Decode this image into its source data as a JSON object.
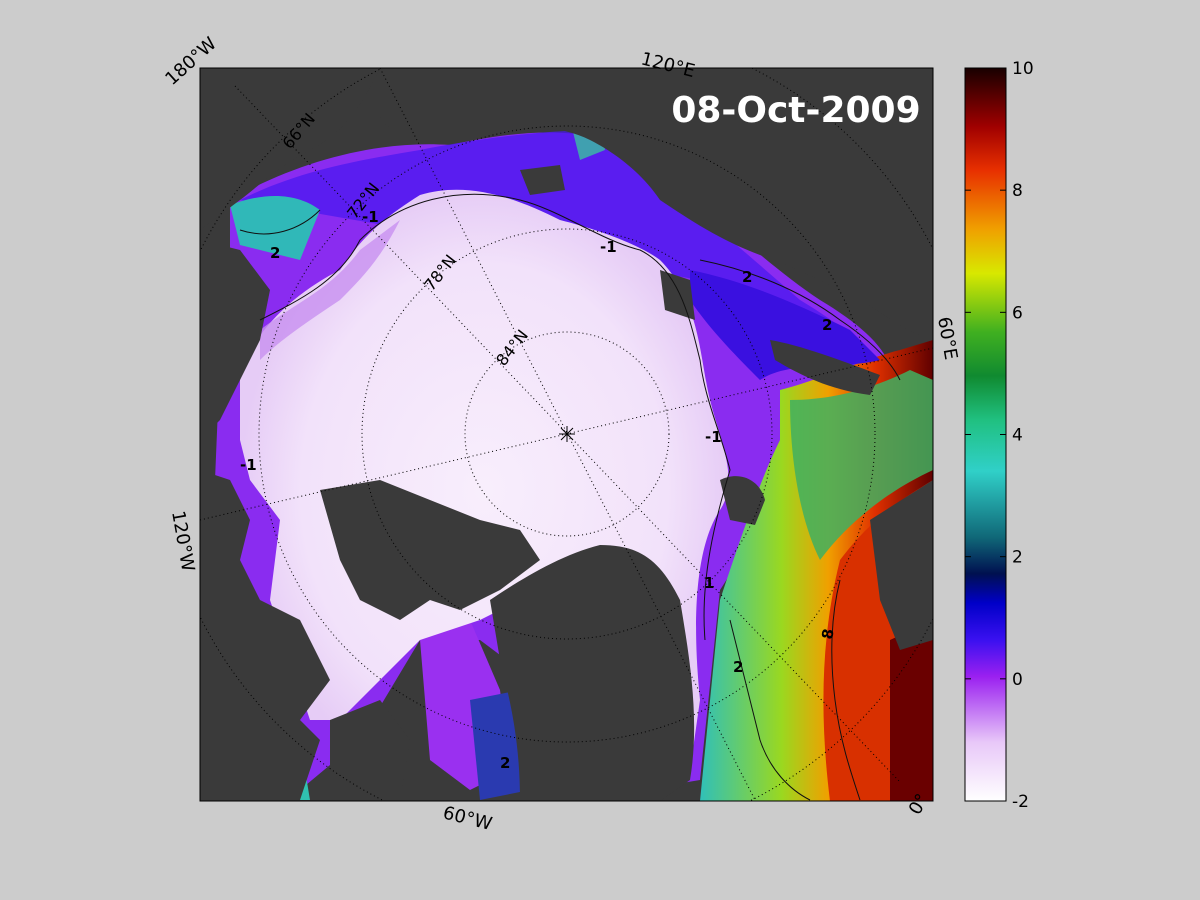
{
  "map": {
    "date_label": "08-Oct-2009",
    "longitude_labels": {
      "lon_180w": "180°W",
      "lon_120e": "120°E",
      "lon_60e": "60°E",
      "lon_0": "0°",
      "lon_60w": "60°W",
      "lon_120w": "120°W"
    },
    "latitude_labels": {
      "lat_66": "66°N",
      "lat_72": "72°N",
      "lat_78": "78°N",
      "lat_84": "84°N"
    },
    "contour_labels": {
      "neg1": "-1",
      "two": "2",
      "one": "1",
      "eight": "8"
    },
    "colorbar": {
      "ticks": [
        "10",
        "8",
        "6",
        "4",
        "2",
        "0",
        "-2"
      ],
      "min": -2,
      "max": 10
    },
    "colors": {
      "figure_bg": "#cccccc",
      "land": "#3a3a3a",
      "land_outside": "#7f7f7f",
      "ice": "#f4e8fb",
      "cold": "#8a2cf0",
      "warm": "#e02000"
    }
  }
}
